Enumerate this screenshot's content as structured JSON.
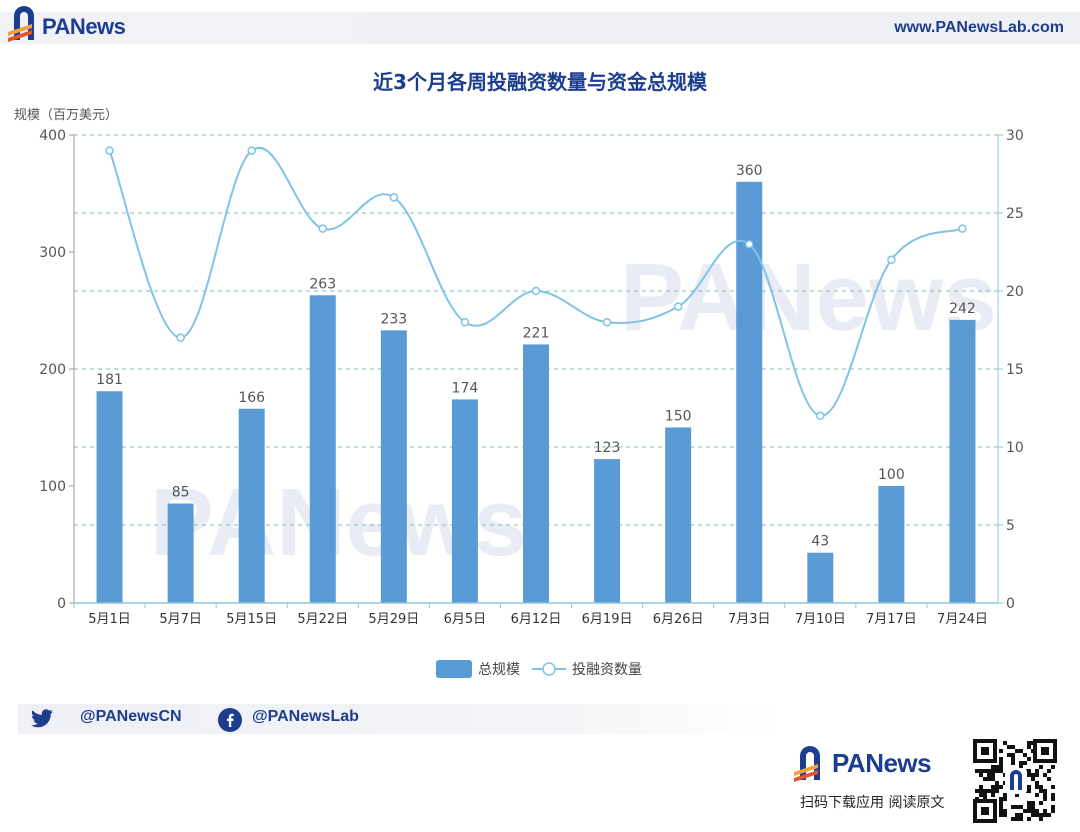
{
  "header": {
    "brand": "PANews",
    "site_url": "www.PANewsLab.com"
  },
  "footer": {
    "twitter_handle": "@PANewsCN",
    "facebook_handle": "@PANewsLab",
    "brand": "PANews",
    "download_text": "扫码下载应用 阅读原文"
  },
  "colors": {
    "bar": "#5b9bd5",
    "line": "#7fc3e6",
    "grid": "#7fbfb0",
    "brand": "#1d3d8f"
  },
  "chart_data": {
    "type": "bar",
    "title": "近3个月各周投融资数量与资金总规模",
    "ylabel": "规模（百万美元）",
    "categories": [
      "5月1日",
      "5月7日",
      "5月15日",
      "5月22日",
      "5月29日",
      "6月5日",
      "6月12日",
      "6月19日",
      "6月26日",
      "7月3日",
      "7月10日",
      "7月17日",
      "7月24日"
    ],
    "ylim": [
      0,
      400
    ],
    "y_ticks": [
      0,
      100,
      200,
      300,
      400
    ],
    "y2lim": [
      0,
      30
    ],
    "y2_ticks": [
      0,
      5,
      10,
      15,
      20,
      25,
      30
    ],
    "series": [
      {
        "name": "总规模",
        "type": "bar",
        "axis": "left",
        "values": [
          181,
          85,
          166,
          263,
          233,
          174,
          221,
          123,
          150,
          360,
          43,
          100,
          242
        ]
      },
      {
        "name": "投融资数量",
        "type": "line",
        "axis": "right",
        "smooth": true,
        "values": [
          29,
          17,
          29,
          24,
          26,
          18,
          20,
          18,
          19,
          23,
          12,
          22,
          24
        ]
      }
    ],
    "legend": "bottom-center",
    "grid": true
  }
}
